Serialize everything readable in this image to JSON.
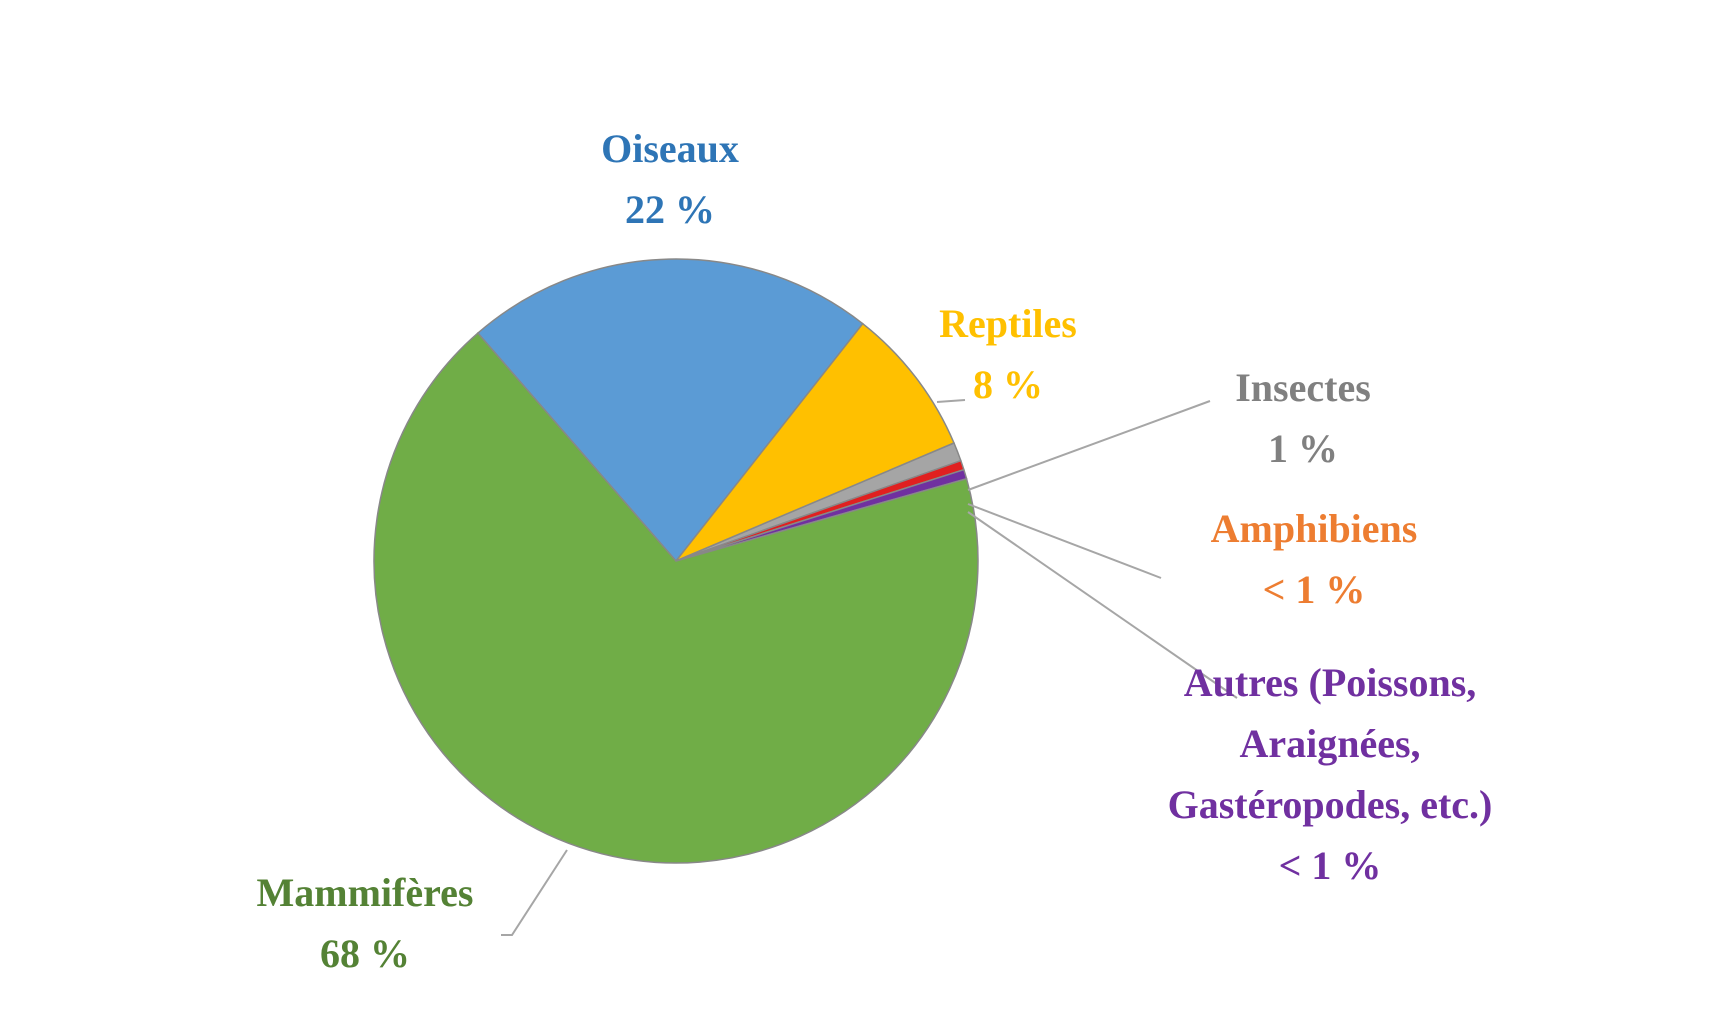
{
  "chart_data": {
    "type": "pie",
    "categories": [
      "Oiseaux",
      "Reptiles",
      "Insectes",
      "Amphibiens",
      "Autres (Poissons, Araignées, Gastéropodes, etc.)",
      "Mammifères"
    ],
    "values": [
      22,
      8,
      1,
      0.5,
      0.5,
      68
    ],
    "value_labels": [
      "22 %",
      "8 %",
      "1 %",
      "< 1 %",
      "< 1 %",
      "68 %"
    ],
    "colors": [
      "#5b9bd5",
      "#ffc000",
      "#a5a5a5",
      "#e02020",
      "#7030a0",
      "#70ad47"
    ],
    "label_colors": [
      "#2e75b6",
      "#ffc000",
      "#808080",
      "#ed7d31",
      "#7030a0",
      "#548235"
    ]
  }
}
